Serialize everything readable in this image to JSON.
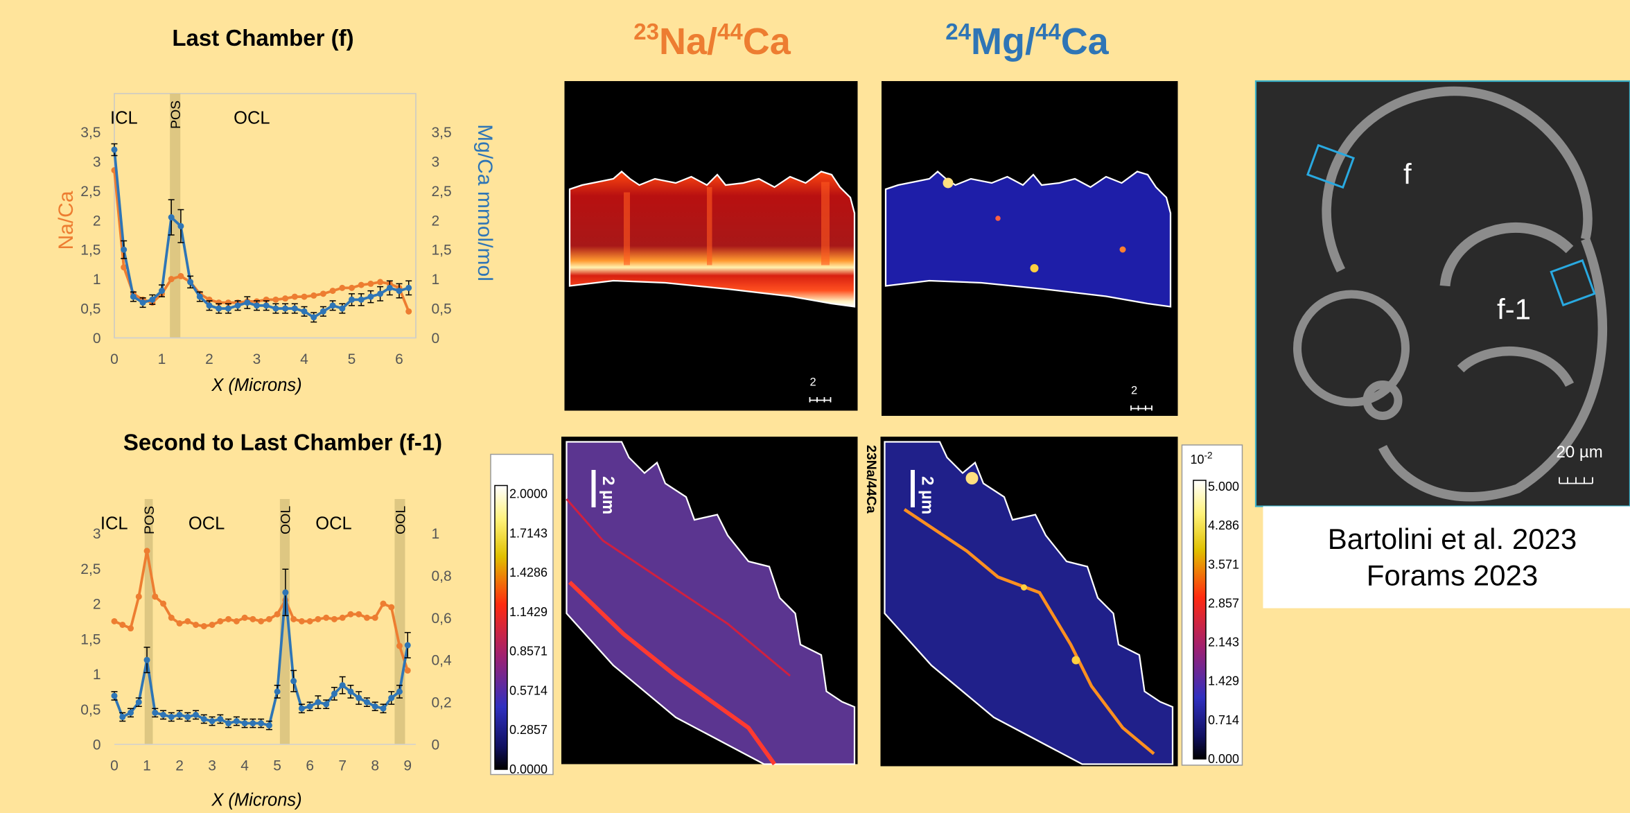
{
  "chart_data": [
    {
      "type": "line",
      "title": "Last Chamber (f)",
      "x_label": "X (Microns)",
      "y_label": "Na/Ca",
      "y2_label": "Mg/Ca mmol/mol",
      "x": [
        0,
        0.2,
        0.4,
        0.6,
        0.8,
        1,
        1.2,
        1.4,
        1.6,
        1.8,
        2,
        2.2,
        2.4,
        2.6,
        2.8,
        3,
        3.2,
        3.4,
        3.6,
        3.8,
        4,
        4.2,
        4.4,
        4.6,
        4.8,
        5,
        5.2,
        5.4,
        5.6,
        5.8,
        6,
        6.2
      ],
      "xlim": [
        0,
        6.35
      ],
      "xticks": [
        0,
        1,
        2,
        3,
        4,
        5,
        6
      ],
      "ylim": [
        0,
        3.5
      ],
      "yticks": [
        0,
        {
          "value": 0.5,
          "label": "0,5"
        },
        1,
        {
          "value": 1.5,
          "label": "1,5"
        },
        2,
        {
          "value": 2.5,
          "label": "2,5"
        },
        3,
        {
          "value": 3.5,
          "label": "3,5"
        }
      ],
      "y2lim": [
        0,
        3.5
      ],
      "y2ticks": [
        0,
        {
          "value": 0.5,
          "label": "0,5"
        },
        1,
        {
          "value": 1.5,
          "label": "1,5"
        },
        2,
        {
          "value": 2.5,
          "label": "2,5"
        },
        3,
        {
          "value": 3.5,
          "label": "3,5"
        }
      ],
      "band_color": "#d8c27e",
      "regions": [
        {
          "label": "ICL",
          "x": 0
        },
        {
          "label": "POS",
          "band": [
            1.17,
            1.39
          ]
        },
        {
          "label": "OCL",
          "x": 2.6
        }
      ],
      "series": [
        {
          "color": "#ED7D31",
          "values": [
            2.85,
            1.2,
            0.75,
            0.65,
            0.6,
            0.75,
            1.0,
            1.05,
            0.95,
            0.75,
            0.65,
            0.6,
            0.6,
            0.6,
            0.62,
            0.62,
            0.65,
            0.65,
            0.67,
            0.7,
            0.7,
            0.72,
            0.75,
            0.8,
            0.85,
            0.85,
            0.9,
            0.92,
            0.95,
            0.92,
            0.85,
            0.45
          ]
        },
        {
          "color": "#2E75B6",
          "axis": "y2",
          "values": [
            3.2,
            1.5,
            0.7,
            0.6,
            0.65,
            0.8,
            2.05,
            1.9,
            0.95,
            0.7,
            0.55,
            0.5,
            0.5,
            0.55,
            0.6,
            0.55,
            0.55,
            0.5,
            0.5,
            0.5,
            0.45,
            0.35,
            0.45,
            0.55,
            0.5,
            0.65,
            0.65,
            0.7,
            0.75,
            0.85,
            0.8,
            0.85
          ],
          "errors": [
            0.1,
            0.15,
            0.08,
            0.08,
            0.08,
            0.1,
            0.3,
            0.28,
            0.1,
            0.08,
            0.08,
            0.08,
            0.08,
            0.08,
            0.1,
            0.08,
            0.08,
            0.08,
            0.08,
            0.08,
            0.08,
            0.08,
            0.08,
            0.08,
            0.08,
            0.1,
            0.1,
            0.1,
            0.12,
            0.12,
            0.12,
            0.12
          ]
        }
      ]
    },
    {
      "type": "line",
      "title": "Second to Last Chamber (f-1)",
      "x_label": "X (Microns)",
      "x": [
        0,
        0.25,
        0.5,
        0.75,
        1,
        1.25,
        1.5,
        1.75,
        2,
        2.25,
        2.5,
        2.75,
        3,
        3.25,
        3.5,
        3.75,
        4,
        4.25,
        4.5,
        4.75,
        5,
        5.25,
        5.5,
        5.75,
        6,
        6.25,
        6.5,
        6.75,
        7,
        7.25,
        7.5,
        7.75,
        8,
        8.25,
        8.5,
        8.75,
        9
      ],
      "xlim": [
        0,
        9.25
      ],
      "xticks": [
        0,
        1,
        2,
        3,
        4,
        5,
        6,
        7,
        8,
        9
      ],
      "ylim": [
        0,
        3
      ],
      "yticks": [
        0,
        {
          "value": 0.5,
          "label": "0,5"
        },
        1,
        {
          "value": 1.5,
          "label": "1,5"
        },
        2,
        {
          "value": 2.5,
          "label": "2,5"
        },
        3
      ],
      "y2lim": [
        0,
        1
      ],
      "y2ticks": [
        0,
        {
          "value": 0.2,
          "label": "0,2"
        },
        {
          "value": 0.4,
          "label": "0,4"
        },
        {
          "value": 0.6,
          "label": "0,6"
        },
        {
          "value": 0.8,
          "label": "0,8"
        },
        1
      ],
      "band_color": "#d8c27e",
      "regions": [
        {
          "label": "ICL",
          "x": -0.3
        },
        {
          "label": "POS",
          "band": [
            0.93,
            1.18
          ]
        },
        {
          "label": "OCL",
          "x": 2.4
        },
        {
          "label": "OOL",
          "band": [
            5.08,
            5.38
          ]
        },
        {
          "label": "OCL",
          "x": 6.3
        },
        {
          "label": "OOL",
          "band": [
            8.6,
            8.92
          ]
        }
      ],
      "series": [
        {
          "color": "#ED7D31",
          "values": [
            1.75,
            1.7,
            1.65,
            2.1,
            2.75,
            2.1,
            2.0,
            1.8,
            1.72,
            1.75,
            1.7,
            1.68,
            1.7,
            1.75,
            1.78,
            1.75,
            1.8,
            1.78,
            1.75,
            1.78,
            1.85,
            2.05,
            1.78,
            1.75,
            1.75,
            1.78,
            1.8,
            1.78,
            1.8,
            1.85,
            1.85,
            1.8,
            1.8,
            2.0,
            1.95,
            1.4,
            1.05
          ]
        },
        {
          "color": "#2E75B6",
          "axis": "y2",
          "values": [
            0.23,
            0.13,
            0.15,
            0.2,
            0.4,
            0.15,
            0.14,
            0.13,
            0.14,
            0.13,
            0.14,
            0.12,
            0.11,
            0.12,
            0.1,
            0.11,
            0.1,
            0.1,
            0.1,
            0.09,
            0.25,
            0.72,
            0.3,
            0.17,
            0.18,
            0.2,
            0.19,
            0.24,
            0.28,
            0.25,
            0.22,
            0.2,
            0.18,
            0.17,
            0.22,
            0.25,
            0.47
          ],
          "errors": [
            0.02,
            0.02,
            0.02,
            0.02,
            0.06,
            0.02,
            0.02,
            0.02,
            0.02,
            0.02,
            0.02,
            0.02,
            0.02,
            0.02,
            0.02,
            0.02,
            0.02,
            0.02,
            0.02,
            0.02,
            0.03,
            0.11,
            0.05,
            0.02,
            0.02,
            0.03,
            0.02,
            0.03,
            0.04,
            0.03,
            0.03,
            0.02,
            0.02,
            0.02,
            0.03,
            0.03,
            0.06
          ]
        }
      ]
    }
  ],
  "headings": [
    {
      "parts": [
        "23",
        "Na/",
        "44",
        "Ca"
      ],
      "color": "#ED7D31"
    },
    {
      "parts": [
        "24",
        "Mg/",
        "44",
        "Ca"
      ],
      "color": "#2E75B6"
    }
  ],
  "map_labels": {
    "vertical": "23Na/44Ca",
    "scales": [
      "2",
      "2",
      "2 µm",
      "2 µm"
    ]
  },
  "colorbars": [
    {
      "labels": [
        "2.0000",
        "1.7143",
        "1.4286",
        "1.1429",
        "0.8571",
        "0.5714",
        "0.2857",
        "0.0000"
      ]
    },
    {
      "base": "10",
      "exponent": "-2",
      "labels": [
        "5.000",
        "4.286",
        "3.571",
        "2.857",
        "2.143",
        "1.429",
        "0.714",
        "0.000"
      ]
    }
  ],
  "sem": {
    "labels": [
      "f",
      "f-1"
    ],
    "scale": "20 µm"
  },
  "citation": [
    "Bartolini et al. 2023",
    "Forams 2023"
  ]
}
